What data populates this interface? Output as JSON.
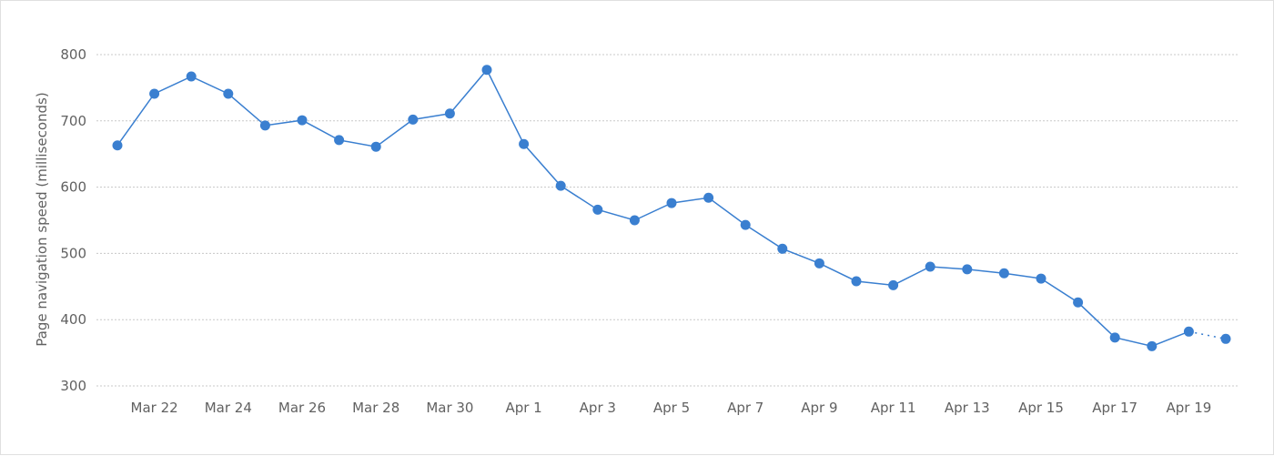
{
  "chart_data": {
    "type": "line",
    "title": "",
    "xlabel": "",
    "ylabel": "Page navigation speed (milliseconds)",
    "ylim": [
      300,
      800
    ],
    "yticks": [
      300,
      400,
      500,
      600,
      700,
      800
    ],
    "grid": true,
    "line_color": "#3a7fd0",
    "x": [
      "Mar 21",
      "Mar 22",
      "Mar 23",
      "Mar 24",
      "Mar 25",
      "Mar 26",
      "Mar 27",
      "Mar 28",
      "Mar 29",
      "Mar 30",
      "Mar 31",
      "Apr 1",
      "Apr 2",
      "Apr 3",
      "Apr 4",
      "Apr 5",
      "Apr 6",
      "Apr 7",
      "Apr 8",
      "Apr 9",
      "Apr 10",
      "Apr 11",
      "Apr 12",
      "Apr 13",
      "Apr 14",
      "Apr 15",
      "Apr 16",
      "Apr 17",
      "Apr 18",
      "Apr 19",
      "Apr 20"
    ],
    "xtick_labels": [
      "Mar 22",
      "Mar 24",
      "Mar 26",
      "Mar 28",
      "Mar 30",
      "Apr 1",
      "Apr 3",
      "Apr 5",
      "Apr 7",
      "Apr 9",
      "Apr 11",
      "Apr 13",
      "Apr 15",
      "Apr 17",
      "Apr 19"
    ],
    "values": [
      663,
      741,
      767,
      741,
      693,
      701,
      671,
      661,
      702,
      711,
      777,
      665,
      602,
      566,
      550,
      576,
      584,
      543,
      507,
      485,
      458,
      452,
      480,
      476,
      470,
      462,
      426,
      373,
      360,
      382,
      371
    ],
    "last_segment_dotted": true
  }
}
